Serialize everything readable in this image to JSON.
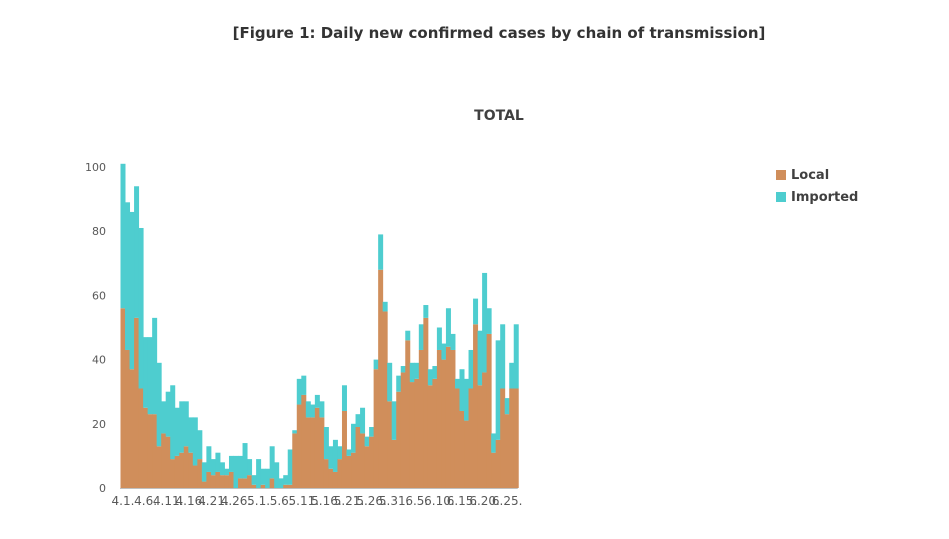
{
  "figure_title": "[Figure 1: Daily new confirmed cases by chain of transmission]",
  "colors": {
    "local": "#D08E5B",
    "imported": "#4ECDCF",
    "axis": "#BFBFBF",
    "text": "#595959"
  },
  "chart_data": {
    "type": "bar",
    "stacked": true,
    "title": "TOTAL",
    "xlabel": "",
    "ylabel": "",
    "ylim": [
      0,
      100
    ],
    "yticks": [
      0,
      20,
      40,
      60,
      80,
      100
    ],
    "grid": false,
    "legend_position": "top-right",
    "x_tick_labels": [
      "4.1.",
      "4.6.",
      "4.11.",
      "4.16.",
      "4.21.",
      "4.26.",
      "5.1.",
      "5.6.",
      "5.11.",
      "5.16.",
      "5.21.",
      "5.26.",
      "5.31.",
      "6.5.",
      "6.10.",
      "6.15.",
      "6.20.",
      "6.25."
    ],
    "categories": [
      "4.1.",
      "4.2.",
      "4.3.",
      "4.4.",
      "4.5.",
      "4.6.",
      "4.7.",
      "4.8.",
      "4.9.",
      "4.10.",
      "4.11.",
      "4.12.",
      "4.13.",
      "4.14.",
      "4.15.",
      "4.16.",
      "4.17.",
      "4.18.",
      "4.19.",
      "4.20.",
      "4.21.",
      "4.22.",
      "4.23.",
      "4.24.",
      "4.25.",
      "4.26.",
      "4.27.",
      "4.28.",
      "4.29.",
      "4.30.",
      "5.1.",
      "5.2.",
      "5.3.",
      "5.4.",
      "5.5.",
      "5.6.",
      "5.7.",
      "5.8.",
      "5.9.",
      "5.10.",
      "5.11.",
      "5.12.",
      "5.13.",
      "5.14.",
      "5.15.",
      "5.16.",
      "5.17.",
      "5.18.",
      "5.19.",
      "5.20.",
      "5.21.",
      "5.22.",
      "5.23.",
      "5.24.",
      "5.25.",
      "5.26.",
      "5.27.",
      "5.28.",
      "5.29.",
      "5.30.",
      "5.31.",
      "6.1.",
      "6.2.",
      "6.3.",
      "6.4.",
      "6.5.",
      "6.6.",
      "6.7.",
      "6.8.",
      "6.9.",
      "6.10.",
      "6.11.",
      "6.12.",
      "6.13.",
      "6.14.",
      "6.15.",
      "6.16.",
      "6.17.",
      "6.18.",
      "6.19.",
      "6.20.",
      "6.21.",
      "6.22.",
      "6.23.",
      "6.24.",
      "6.25.",
      "6.26.",
      "6.27."
    ],
    "series": [
      {
        "name": "Local",
        "values": [
          56,
          43,
          37,
          53,
          31,
          25,
          23,
          23,
          13,
          17,
          16,
          9,
          10,
          11,
          13,
          11,
          7,
          9,
          2,
          5,
          4,
          5,
          4,
          4,
          5,
          0,
          3,
          3,
          4,
          1,
          0,
          1,
          0,
          3,
          0,
          0,
          1,
          1,
          17,
          26,
          29,
          22,
          22,
          25,
          22,
          9,
          6,
          5,
          9,
          24,
          10,
          11,
          19,
          17,
          13,
          16,
          37,
          68,
          55,
          27,
          15,
          30,
          36,
          46,
          33,
          34,
          43,
          53,
          32,
          34,
          43,
          40,
          44,
          43,
          31,
          24,
          21,
          31,
          51,
          32,
          36,
          48,
          11,
          15,
          31,
          23,
          31,
          31
        ]
      },
      {
        "name": "Imported",
        "values": [
          45,
          46,
          49,
          41,
          50,
          22,
          24,
          30,
          26,
          10,
          14,
          23,
          15,
          16,
          14,
          11,
          15,
          9,
          6,
          8,
          5,
          6,
          4,
          2,
          5,
          10,
          7,
          11,
          5,
          3,
          9,
          5,
          6,
          10,
          8,
          3,
          3,
          11,
          1,
          8,
          6,
          5,
          4,
          4,
          5,
          10,
          7,
          10,
          4,
          8,
          2,
          9,
          4,
          8,
          3,
          3,
          3,
          11,
          3,
          12,
          12,
          5,
          2,
          3,
          6,
          5,
          8,
          4,
          5,
          4,
          7,
          5,
          12,
          5,
          3,
          13,
          13,
          12,
          8,
          17,
          31,
          8,
          6,
          31,
          20,
          5,
          8,
          20
        ]
      }
    ]
  }
}
